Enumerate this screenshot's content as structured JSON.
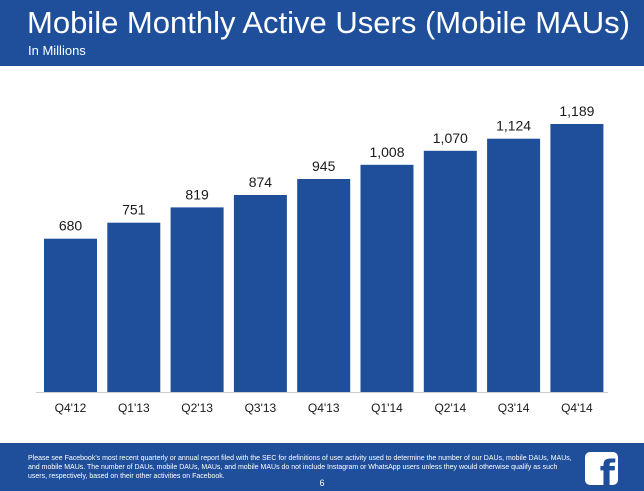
{
  "header": {
    "title": "Mobile Monthly Active Users (Mobile MAUs)",
    "subtitle": "In Millions"
  },
  "chart_data": {
    "type": "bar",
    "title": "Mobile Monthly Active Users (Mobile MAUs)",
    "subtitle": "In Millions",
    "xlabel": "",
    "ylabel": "",
    "categories": [
      "Q4'12",
      "Q1'13",
      "Q2'13",
      "Q3'13",
      "Q4'13",
      "Q1'14",
      "Q2'14",
      "Q3'14",
      "Q4'14"
    ],
    "values": [
      680,
      751,
      819,
      874,
      945,
      1008,
      1070,
      1124,
      1189
    ],
    "value_labels": [
      "680",
      "751",
      "819",
      "874",
      "945",
      "1,008",
      "1,070",
      "1,124",
      "1,189"
    ],
    "ylim": [
      0,
      1189
    ],
    "grid": false,
    "legend": "none",
    "bar_color": "#1f4f9b"
  },
  "footer": {
    "note": "Please see Facebook's most recent quarterly or annual report filed with the SEC for definitions of user activity used to determine the number of our DAUs, mobile DAUs, MAUs, and mobile MAUs. The number of DAUs, mobile DAUs, MAUs, and mobile MAUs do not include Instagram or WhatsApp users unless they would otherwise qualify as such users, respectively, based on their other activities on Facebook.",
    "page_number": "6"
  },
  "logo": {
    "icon": "facebook-logo-icon",
    "letter": "f"
  },
  "colors": {
    "brand": "#1f4f9b",
    "text_dark": "#1a1a1a",
    "axis": "#cccccc"
  }
}
